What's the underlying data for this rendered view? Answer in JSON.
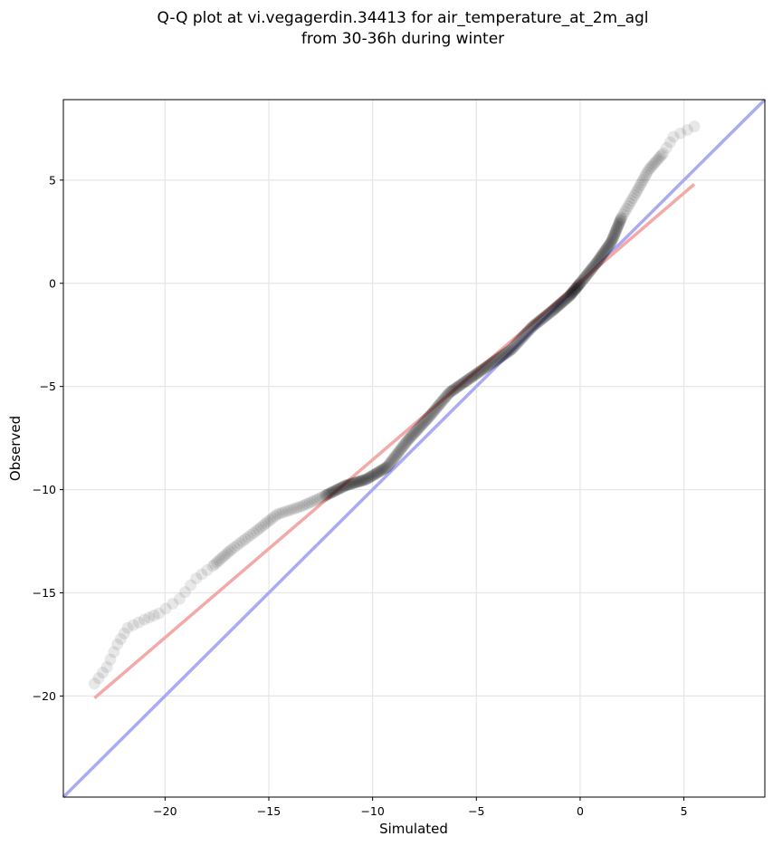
{
  "chart_data": {
    "type": "scatter",
    "title_lines": [
      "Q-Q plot at vi.vegagerdin.34413 for air_temperature_at_2m_agl",
      "from 30-36h during winter"
    ],
    "xlabel": "Simulated",
    "ylabel": "Observed",
    "xlim": [
      -24.9,
      8.9
    ],
    "ylim": [
      -24.9,
      8.9
    ],
    "xticks": [
      -20,
      -15,
      -10,
      -5,
      0,
      5
    ],
    "yticks": [
      5,
      0,
      -5,
      -10,
      -15,
      -20
    ],
    "grid": true,
    "colors": {
      "points": "#000000",
      "identity_line": "#aaaaf5",
      "fit_line": "#f4a9a9"
    },
    "identity_line": {
      "x": [
        -24.9,
        8.9
      ],
      "y": [
        -24.9,
        8.9
      ]
    },
    "fit_line": {
      "x": [
        -23.4,
        5.5
      ],
      "y": [
        -20.1,
        4.8
      ]
    },
    "quantile_curve": {
      "x": [
        -23.4,
        -22.8,
        -22.3,
        -21.8,
        -21.0,
        -20.3,
        -19.3,
        -18.5,
        -17.7,
        -16.8,
        -15.6,
        -14.6,
        -13.4,
        -12.3,
        -11.3,
        -10.3,
        -9.3,
        -8.3,
        -7.3,
        -6.3,
        -5.3,
        -4.3,
        -3.3,
        -2.3,
        -1.3,
        -0.5,
        0.0,
        0.8,
        1.5,
        2.0,
        2.7,
        3.3,
        4.0,
        4.5,
        5.5
      ],
      "y": [
        -19.4,
        -18.6,
        -17.5,
        -16.7,
        -16.3,
        -16.0,
        -15.3,
        -14.3,
        -13.7,
        -12.9,
        -12.0,
        -11.2,
        -10.8,
        -10.3,
        -9.8,
        -9.5,
        -8.9,
        -7.6,
        -6.5,
        -5.3,
        -4.6,
        -3.9,
        -3.2,
        -2.1,
        -1.3,
        -0.6,
        0.0,
        1.0,
        2.0,
        3.2,
        4.4,
        5.5,
        6.3,
        7.1,
        7.6
      ]
    }
  }
}
